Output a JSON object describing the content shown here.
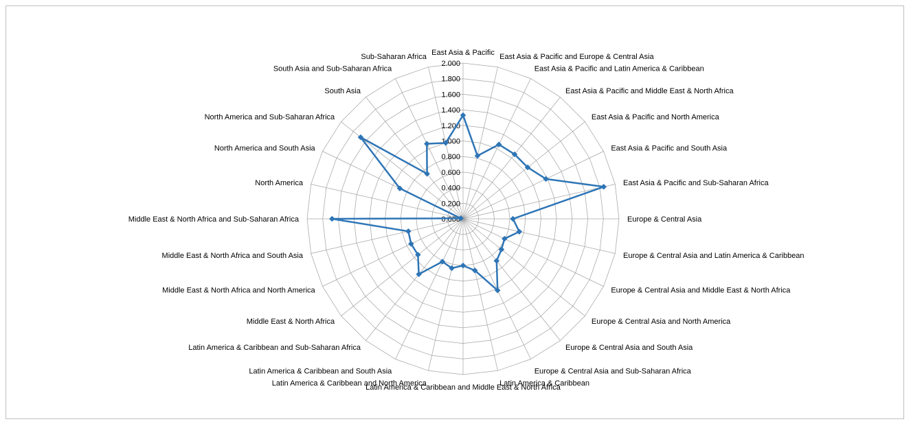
{
  "chart_data": {
    "type": "radar",
    "title": "",
    "categories": [
      "East Asia & Pacific",
      "East Asia & Pacific and Europe & Central Asia",
      "East Asia & Pacific and Latin America & Caribbean",
      "East Asia & Pacific and Middle East & North Africa",
      "East Asia & Pacific and North America",
      "East Asia & Pacific and South Asia",
      "East Asia & Pacific and Sub-Saharan Africa",
      "Europe & Central Asia",
      "Europe & Central Asia and Latin America & Caribbean",
      "Europe & Central Asia and Middle East & North Africa",
      "Europe & Central Asia and North America",
      "Europe & Central Asia and South Asia",
      "Europe & Central Asia and Sub-Saharan Africa",
      "Latin America & Caribbean",
      "Latin America & Caribbean and Middle East & North Africa",
      "Latin America & Caribbean and North America",
      "Latin America & Caribbean and South Asia",
      "Latin America & Caribbean and Sub-Saharan Africa",
      "Middle East & North Africa",
      "Middle East & North Africa and North America",
      "Middle East & North Africa and South Asia",
      "Middle East & North Africa and Sub-Saharan Africa",
      "North America",
      "North America and South Asia",
      "North America and Sub-Saharan Africa",
      "South Asia",
      "South Asia and Sub-Saharan Africa",
      "Sub-Saharan Africa"
    ],
    "series": [
      {
        "values": [
          1.33,
          0.83,
          1.06,
          1.06,
          1.06,
          1.18,
          1.85,
          0.64,
          0.74,
          0.59,
          0.63,
          0.69,
          1.02,
          0.68,
          0.6,
          0.65,
          0.61,
          0.91,
          0.74,
          0.74,
          0.72,
          1.68,
          0.03,
          0.9,
          1.68,
          0.74,
          1.07,
          1.0
        ],
        "color": "#2E75B6"
      }
    ],
    "radial_axis": {
      "min": 0,
      "max": 2.0,
      "step": 0.2,
      "tick_labels": [
        "0.000",
        "0.200",
        "0.400",
        "0.600",
        "0.800",
        "1.000",
        "1.200",
        "1.400",
        "1.600",
        "1.800",
        "2.000"
      ]
    },
    "grid": true,
    "legend": "none",
    "colors": {
      "series": "#2E75B6",
      "grid": "#a6a6a6",
      "frame": "#bfbfbf"
    }
  }
}
